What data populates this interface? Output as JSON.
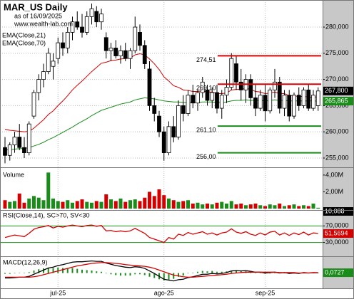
{
  "chart_data": [
    {
      "type": "candlestick",
      "title": "MAR_US Daily",
      "subtitle": "as of 16/09/2025",
      "source": "www.wealth-lab.com",
      "categories": [
        null,
        null,
        null,
        null,
        null,
        null,
        null,
        null,
        null,
        null,
        null,
        "jul-25",
        null,
        null,
        null,
        null,
        null,
        null,
        null,
        null,
        null,
        null,
        null,
        null,
        null,
        null,
        null,
        null,
        null,
        null,
        null,
        null,
        null,
        "ago-25",
        null,
        null,
        null,
        null,
        null,
        null,
        null,
        null,
        null,
        null,
        null,
        null,
        null,
        null,
        null,
        null,
        null,
        null,
        null,
        null,
        "sep-25",
        null,
        null,
        null,
        null,
        null,
        null,
        null,
        null,
        null,
        null,
        null
      ],
      "open": [
        257,
        255.5,
        257.5,
        259,
        257,
        256,
        263,
        267.5,
        270,
        271.5,
        272.5,
        274,
        277,
        276,
        279,
        281,
        280,
        279,
        282,
        283,
        281,
        278,
        275.5,
        276,
        274.5,
        275.5,
        274,
        275.5,
        279,
        276.5,
        272,
        265,
        263,
        260,
        256,
        261,
        259,
        265,
        263.5,
        267,
        265.5,
        267.5,
        268,
        266,
        267.5,
        264.5,
        267,
        268.5,
        273,
        269.5,
        268,
        270,
        266.5,
        264.5,
        267,
        264,
        268,
        269.5,
        264.5,
        267,
        263,
        267,
        265,
        268,
        264.5,
        265
      ],
      "high": [
        259,
        258,
        260,
        261.5,
        259,
        262,
        268,
        271,
        273,
        276,
        275,
        278,
        279,
        280,
        282,
        283,
        282.5,
        283,
        284.5,
        284,
        283.5,
        279,
        277,
        277.5,
        276.5,
        277,
        276,
        282,
        280.5,
        277.5,
        273.5,
        266.5,
        264,
        261,
        262,
        263,
        266,
        267,
        268,
        269,
        268,
        270.5,
        269,
        268.5,
        269,
        268,
        270,
        275,
        274.5,
        272,
        271,
        271,
        269,
        268,
        269,
        268.5,
        272,
        270.5,
        268,
        268,
        267.5,
        268.5,
        268.5,
        269,
        268,
        268.5
      ],
      "low": [
        254,
        254.5,
        256,
        256.5,
        255,
        255.5,
        262.5,
        266,
        268.5,
        271,
        270,
        273,
        274.5,
        275,
        277.5,
        279.5,
        278,
        278.5,
        280.5,
        280,
        279.5,
        274,
        273.5,
        274,
        273,
        273.5,
        272,
        275,
        275.5,
        272,
        264,
        262,
        259,
        254.5,
        255.5,
        258,
        258.5,
        262,
        263,
        264.5,
        264,
        266.5,
        265,
        264.5,
        263.5,
        262.5,
        265.5,
        268,
        268,
        266,
        265.5,
        265,
        263,
        264,
        262,
        263.5,
        266.5,
        263.5,
        263,
        262,
        262.5,
        264,
        264.5,
        264,
        264,
        264
      ],
      "close": [
        255.5,
        257.5,
        259,
        257,
        256,
        261.5,
        267.5,
        270,
        271.5,
        275,
        273.5,
        277,
        276,
        279,
        281,
        280,
        279,
        282,
        283.5,
        281,
        282.5,
        275.5,
        276,
        274.5,
        275.5,
        274,
        275.5,
        280,
        276.5,
        273,
        265,
        263.5,
        260,
        256,
        261,
        259,
        265,
        263.5,
        267,
        265.5,
        267.5,
        269.5,
        266,
        267.5,
        264.5,
        267,
        268.5,
        274,
        269.5,
        268,
        270,
        266.5,
        264.5,
        267,
        264,
        268,
        269.5,
        264.5,
        267,
        263,
        267,
        265,
        268,
        264.5,
        267,
        267.8
      ],
      "series": [
        {
          "name": "EMA(Close,21)",
          "color": "#d40000",
          "values": [
            260.5,
            260.3,
            260.2,
            260.1,
            260,
            260.1,
            260.7,
            261.5,
            262.3,
            263.3,
            264,
            265,
            265.9,
            266.9,
            268,
            268.9,
            269.7,
            270.6,
            271.5,
            272.3,
            273.1,
            273.3,
            273.6,
            273.7,
            273.9,
            274,
            274.1,
            274.7,
            274.9,
            274.7,
            273.9,
            273,
            271.9,
            270.5,
            269.7,
            268.8,
            268.5,
            268,
            267.9,
            267.7,
            267.7,
            267.8,
            267.6,
            267.6,
            267.3,
            267.3,
            267.4,
            268,
            268.1,
            268.1,
            268.3,
            268.1,
            267.7,
            267.6,
            267.3,
            267.4,
            267.6,
            267.3,
            267.3,
            266.9,
            266.9,
            266.7,
            266.8,
            266.6,
            266.6,
            266.7
          ]
        },
        {
          "name": "EMA(Close,70)",
          "color": "#1a8c1a",
          "values": [
            256.5,
            256.6,
            256.7,
            256.8,
            256.8,
            257,
            257.3,
            257.6,
            258,
            258.5,
            258.9,
            259.4,
            259.9,
            260.4,
            260.9,
            261.5,
            262,
            262.5,
            263.1,
            263.6,
            264.1,
            264.4,
            264.7,
            265,
            265.3,
            265.5,
            265.7,
            266.1,
            266.3,
            266.5,
            266.4,
            266.3,
            266.1,
            265.9,
            265.8,
            265.7,
            265.7,
            265.6,
            265.6,
            265.6,
            265.6,
            265.7,
            265.7,
            265.7,
            265.6,
            265.6,
            265.7,
            265.9,
            266,
            266,
            266.1,
            266,
            266,
            266,
            265.9,
            266,
            266.1,
            266,
            266,
            265.9,
            265.9,
            265.9,
            265.9,
            265.9,
            265.9,
            265.865
          ]
        }
      ],
      "ylim": [
        253.5,
        284.9
      ],
      "yticks": [
        {
          "value": 255,
          "label": "255,000"
        },
        {
          "value": 260,
          "label": "260,000"
        },
        {
          "value": 265,
          "label": "265,000"
        },
        {
          "value": 270,
          "label": "270,000"
        },
        {
          "value": 275,
          "label": "275,000"
        },
        {
          "value": 280,
          "label": "280,000"
        }
      ],
      "levels": [
        {
          "value": 274.51,
          "label": "274,51",
          "color": "#e00000"
        },
        {
          "value": 269.1,
          "label": "269,10",
          "color": "#e00000"
        },
        {
          "value": 261.1,
          "label": "261,10",
          "color": "#1a8c1a"
        },
        {
          "value": 256,
          "label": "256,00",
          "color": "#1a8c1a"
        }
      ],
      "last_labels": [
        {
          "value": 267.8,
          "label": "267,800",
          "color": "#000000"
        },
        {
          "value": 265.865,
          "label": "265,865",
          "color": "#1a8c1a"
        }
      ],
      "grid": true
    },
    {
      "type": "bar",
      "title": "Volume",
      "values": [
        1.0,
        0.8,
        0.9,
        1.8,
        0.7,
        1.2,
        1.5,
        1.3,
        1.0,
        4.3,
        1.2,
        0.9,
        0.8,
        1.0,
        0.7,
        0.9,
        1.1,
        0.8,
        0.7,
        0.9,
        0.8,
        1.7,
        1.1,
        0.9,
        1.2,
        0.8,
        1.0,
        1.1,
        0.9,
        1.3,
        2.0,
        1.5,
        2.3,
        1.6,
        1.2,
        1.0,
        0.8,
        0.9,
        1.0,
        0.6,
        0.7,
        0.5,
        0.6,
        0.5,
        0.7,
        0.8,
        0.6,
        0.9,
        0.5,
        0.6,
        0.4,
        0.5,
        0.6,
        0.4,
        0.3,
        0.5,
        0.4,
        0.6,
        0.3,
        0.4,
        0.5,
        0.3,
        0.4,
        0.3,
        0.6,
        0.1
      ],
      "ylim": [
        0,
        4.5
      ],
      "yticks": [
        {
          "value": 2,
          "label": "2,00M"
        },
        {
          "value": 4,
          "label": "4,00M"
        }
      ],
      "up_color": "#1a8c1a",
      "down_color": "#d40000",
      "last_label": "10,088"
    },
    {
      "type": "line",
      "title": "RSI(Close,14), SC>70, SV<30",
      "color": "#d40000",
      "values": [
        42,
        45,
        48,
        46,
        44,
        52,
        62,
        66,
        68,
        71,
        65,
        69,
        67,
        70,
        72,
        70,
        68,
        71,
        72,
        69,
        71,
        58,
        59,
        56,
        58,
        56,
        58,
        64,
        58,
        52,
        42,
        38,
        34,
        30,
        42,
        38,
        50,
        47,
        54,
        50,
        53,
        56,
        50,
        53,
        48,
        53,
        55,
        63,
        55,
        52,
        56,
        50,
        47,
        53,
        48,
        55,
        57,
        48,
        53,
        47,
        53,
        49,
        55,
        48,
        53,
        51.5694
      ],
      "ylim": [
        0,
        105
      ],
      "yticks": [
        {
          "value": 30,
          "label": "30,0000"
        },
        {
          "value": 70,
          "label": "70,0000"
        }
      ],
      "level_color": "#1a8c1a",
      "last_label": {
        "value": 51.5694,
        "label": "51,5694",
        "color": "#d40000"
      }
    },
    {
      "type": "line",
      "title": "MACD(12,26,9)",
      "series": [
        {
          "color": "#000000",
          "values": [
            -1.2,
            -1.2,
            -1.1,
            -1.0,
            -1.0,
            -0.8,
            -0.3,
            0.2,
            0.7,
            1.2,
            1.4,
            1.8,
            2.0,
            2.3,
            2.6,
            2.7,
            2.7,
            2.8,
            2.9,
            2.8,
            2.8,
            2.4,
            2.1,
            1.8,
            1.6,
            1.4,
            1.3,
            1.5,
            1.4,
            1.1,
            0.5,
            -0.1,
            -0.8,
            -1.5,
            -1.7,
            -1.9,
            -1.6,
            -1.5,
            -1.1,
            -0.9,
            -0.6,
            -0.3,
            -0.3,
            -0.1,
            -0.2,
            -0.1,
            0.1,
            0.5,
            0.6,
            0.5,
            0.6,
            0.4,
            0.2,
            0.2,
            0.0,
            0.1,
            0.2,
            0.0,
            0.1,
            -0.1,
            0.0,
            -0.1,
            0.1,
            0.0,
            0.1,
            0.0727
          ]
        },
        {
          "color": "#d40000",
          "values": [
            -1.0,
            -1.0,
            -1.0,
            -1.0,
            -1.0,
            -1.0,
            -0.9,
            -0.7,
            -0.4,
            -0.1,
            0.2,
            0.5,
            0.8,
            1.1,
            1.4,
            1.7,
            1.9,
            2.1,
            2.3,
            2.4,
            2.5,
            2.5,
            2.4,
            2.3,
            2.2,
            2.0,
            1.9,
            1.8,
            1.7,
            1.6,
            1.4,
            1.1,
            0.7,
            0.3,
            -0.1,
            -0.5,
            -0.7,
            -0.9,
            -1.0,
            -1.0,
            -0.9,
            -0.8,
            -0.7,
            -0.6,
            -0.5,
            -0.4,
            -0.3,
            -0.1,
            0.0,
            0.1,
            0.2,
            0.2,
            0.2,
            0.2,
            0.2,
            0.2,
            0.2,
            0.1,
            0.1,
            0.1,
            0.1,
            0.0,
            0.0,
            0.0,
            0.05,
            0.06
          ]
        }
      ],
      "histogram": {
        "color": "#1a8c1a",
        "values": [
          -0.2,
          -0.2,
          -0.1,
          0,
          0,
          0.2,
          0.6,
          0.9,
          1.1,
          1.3,
          1.2,
          1.3,
          1.2,
          1.2,
          1.2,
          1.0,
          0.8,
          0.7,
          0.6,
          0.4,
          0.3,
          -0.1,
          -0.3,
          -0.5,
          -0.6,
          -0.6,
          -0.6,
          -0.3,
          -0.3,
          -0.5,
          -0.9,
          -1.2,
          -1.5,
          -1.8,
          -1.6,
          -1.4,
          -0.9,
          -0.6,
          -0.1,
          0.1,
          0.3,
          0.5,
          0.4,
          0.5,
          0.3,
          0.3,
          0.4,
          0.6,
          0.6,
          0.4,
          0.4,
          0.2,
          0,
          0,
          -0.2,
          -0.1,
          0,
          -0.1,
          0,
          -0.2,
          -0.1,
          -0.1,
          0.1,
          0,
          0.05,
          0.01
        ]
      },
      "ylim": [
        -3.5,
        3.5
      ],
      "last_label": {
        "value": 0.0727,
        "label": "0,0727",
        "color": "#1a8c1a"
      }
    }
  ]
}
